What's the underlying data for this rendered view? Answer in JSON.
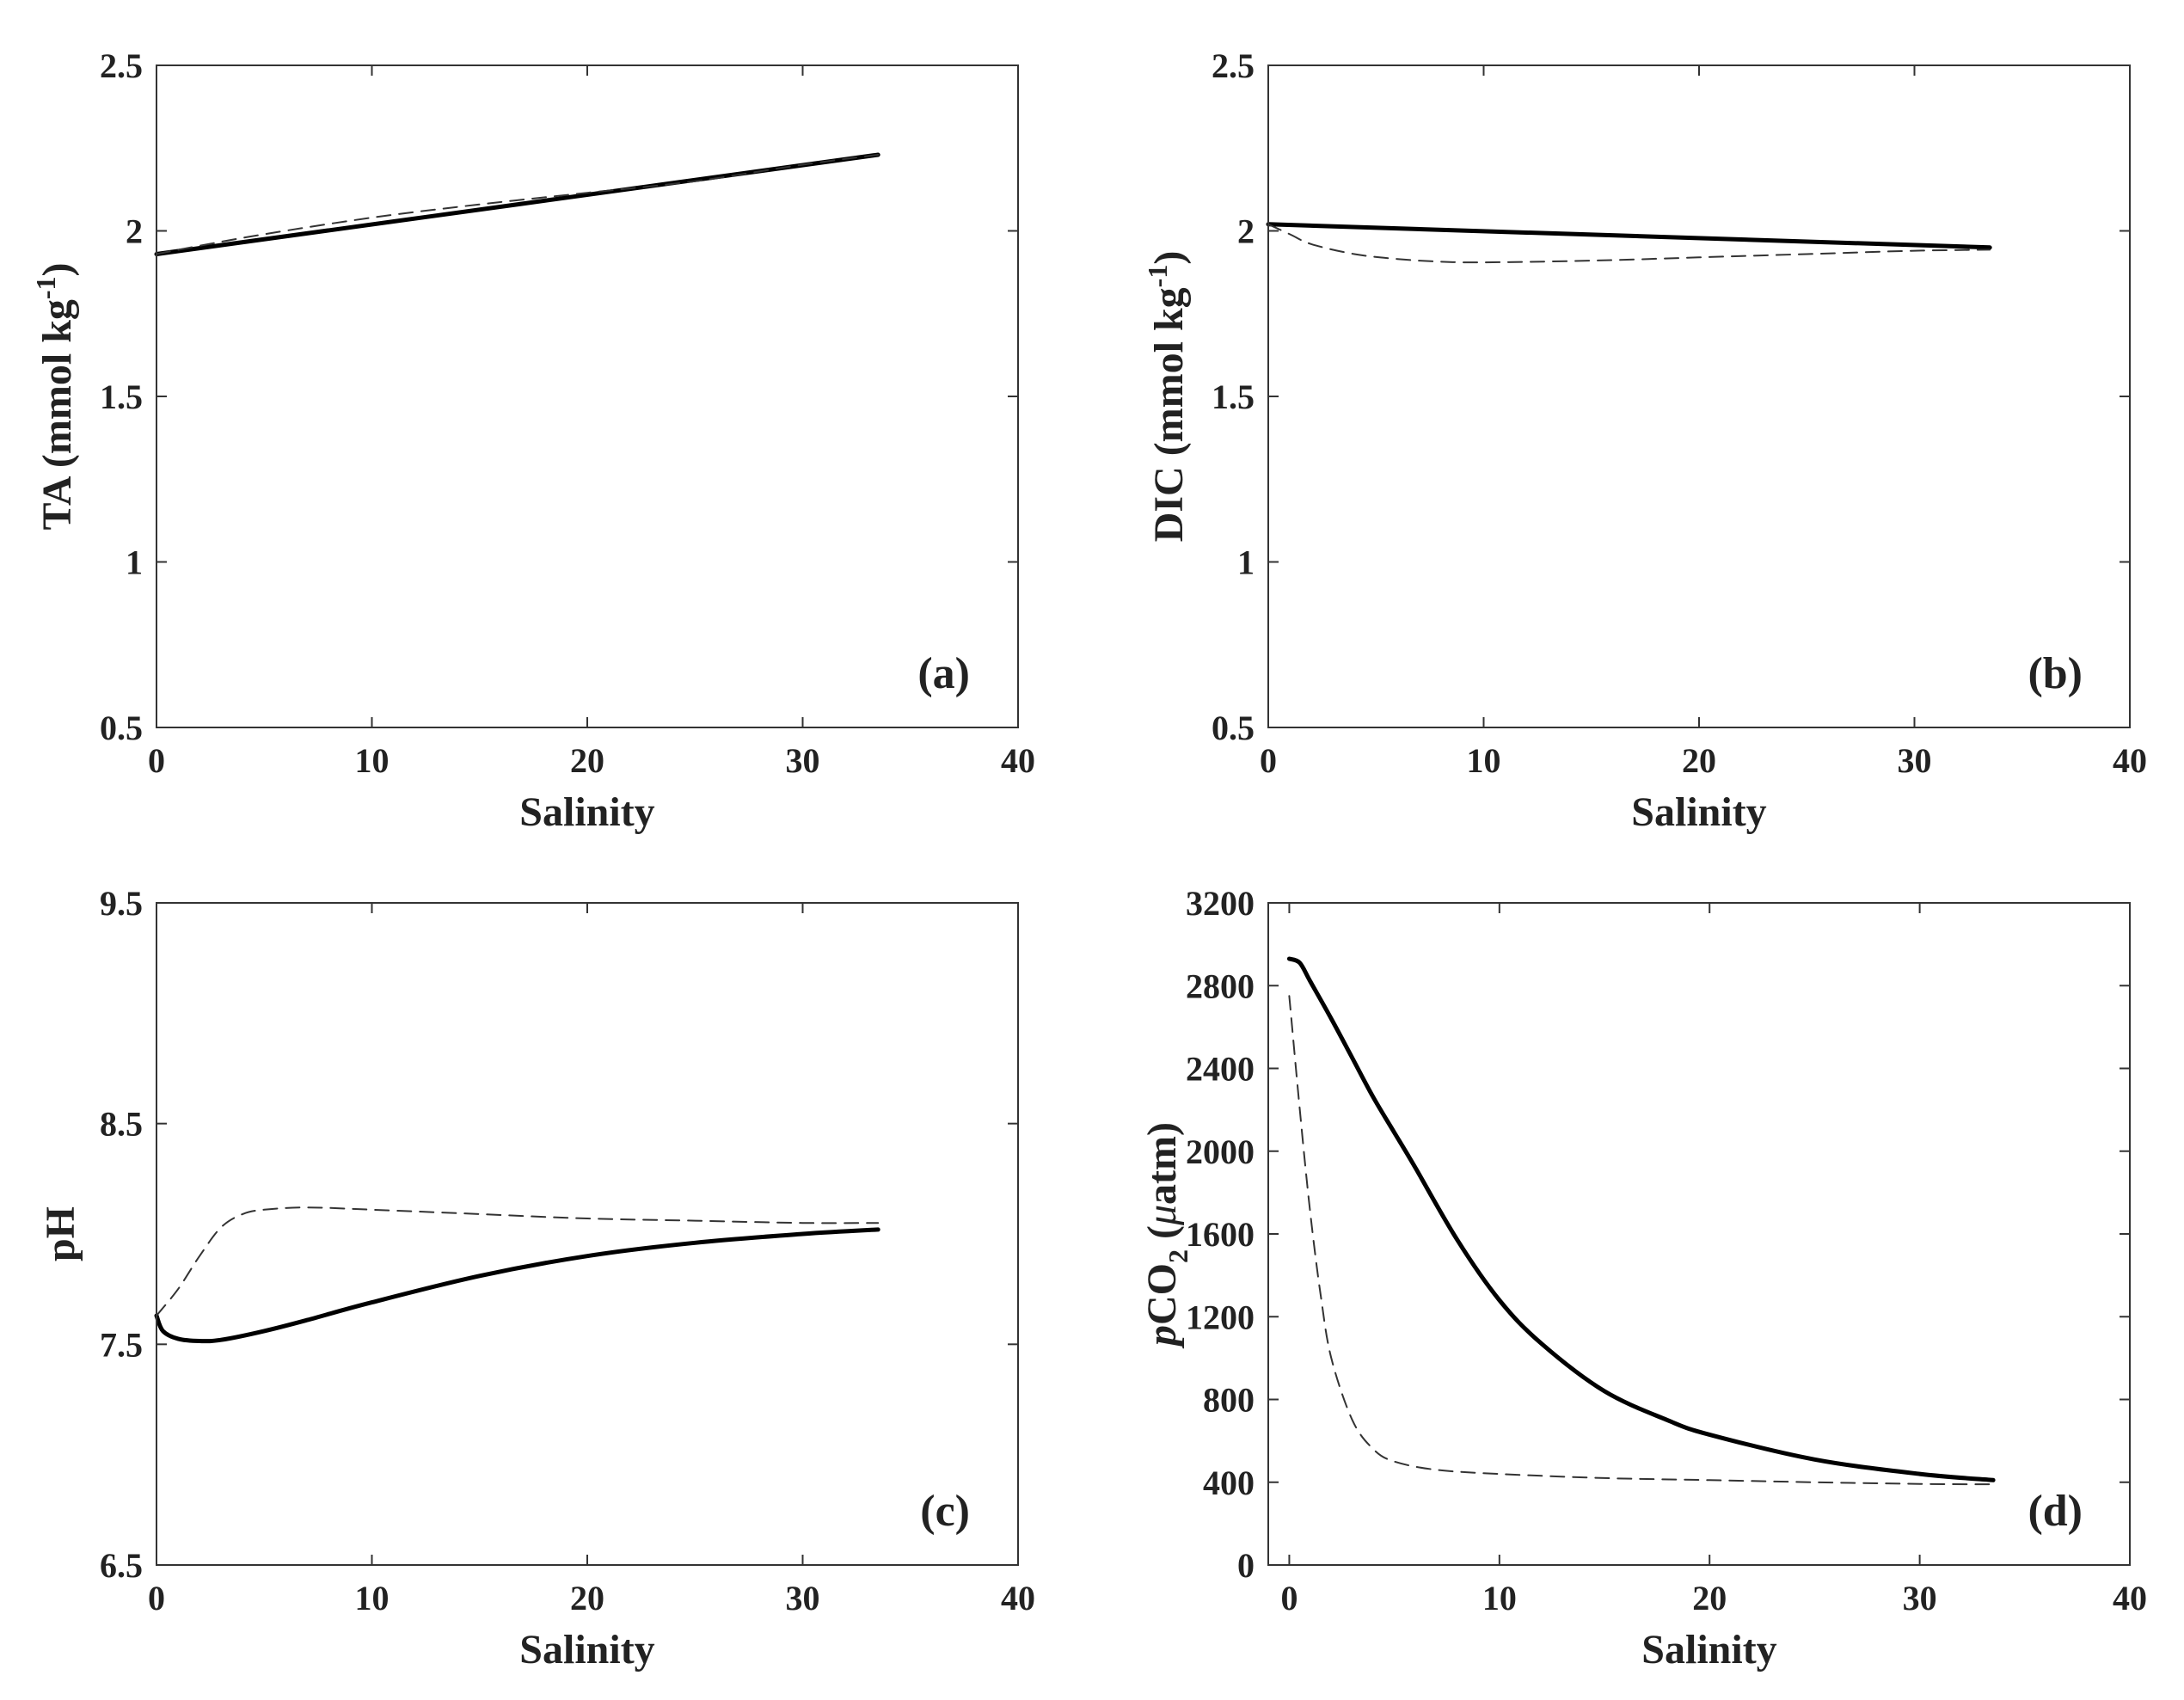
{
  "figure": {
    "colors": {
      "axis": "#333333",
      "solid_line": "#000000",
      "dashed_line": "#333333",
      "background": "#ffffff"
    }
  },
  "chart_data": [
    {
      "id": "a",
      "type": "line",
      "panel_label": "(a)",
      "xlabel": "Salinity",
      "ylabel": {
        "main": "TA (mmol kg",
        "sup": "-1",
        "tail": ")"
      },
      "xlim": [
        0,
        40
      ],
      "ylim": [
        0.5,
        2.5
      ],
      "xticks": [
        0,
        10,
        20,
        30,
        40
      ],
      "xtick_labels": [
        "0",
        "10",
        "20",
        "30",
        "40"
      ],
      "yticks": [
        0.5,
        1,
        1.5,
        2,
        2.5
      ],
      "ytick_labels": [
        "0.5",
        "1",
        "1.5",
        "2",
        "2.5"
      ],
      "series": [
        {
          "name": "solid",
          "style": "solid",
          "x": [
            0,
            33.5
          ],
          "y": [
            1.93,
            2.23
          ]
        },
        {
          "name": "dashed",
          "style": "dashed",
          "x": [
            0,
            2,
            5,
            10,
            15,
            20,
            25,
            30,
            33.5
          ],
          "y": [
            1.93,
            1.955,
            1.99,
            2.04,
            2.08,
            2.115,
            2.15,
            2.2,
            2.23
          ]
        }
      ]
    },
    {
      "id": "b",
      "type": "line",
      "panel_label": "(b)",
      "xlabel": "Salinity",
      "ylabel": {
        "main": "DIC (mmol kg",
        "sup": "-1",
        "tail": ")"
      },
      "xlim": [
        0,
        40
      ],
      "ylim": [
        0.5,
        2.5
      ],
      "xticks": [
        0,
        10,
        20,
        30,
        40
      ],
      "xtick_labels": [
        "0",
        "10",
        "20",
        "30",
        "40"
      ],
      "yticks": [
        0.5,
        1,
        1.5,
        2,
        2.5
      ],
      "ytick_labels": [
        "0.5",
        "1",
        "1.5",
        "2",
        "2.5"
      ],
      "series": [
        {
          "name": "solid",
          "style": "solid",
          "x": [
            0,
            33.5
          ],
          "y": [
            2.02,
            1.95
          ]
        },
        {
          "name": "dashed",
          "style": "dashed",
          "x": [
            0,
            1,
            2,
            4,
            6,
            8,
            10,
            15,
            20,
            25,
            30,
            33.5
          ],
          "y": [
            2.02,
            1.99,
            1.96,
            1.93,
            1.915,
            1.907,
            1.905,
            1.91,
            1.92,
            1.93,
            1.94,
            1.943
          ]
        }
      ]
    },
    {
      "id": "c",
      "type": "line",
      "panel_label": "(c)",
      "xlabel": "Salinity",
      "ylabel": {
        "main": "pH",
        "sup": "",
        "tail": ""
      },
      "xlim": [
        0,
        40
      ],
      "ylim": [
        6.5,
        9.5
      ],
      "xticks": [
        0,
        10,
        20,
        30,
        40
      ],
      "xtick_labels": [
        "0",
        "10",
        "20",
        "30",
        "40"
      ],
      "yticks": [
        6.5,
        7.5,
        8.5,
        9.5
      ],
      "ytick_labels": [
        "6.5",
        "7.5",
        "8.5",
        "9.5"
      ],
      "series": [
        {
          "name": "solid",
          "style": "solid",
          "x": [
            0,
            0.3,
            1,
            2,
            3,
            5,
            7,
            10,
            15,
            20,
            25,
            30,
            33.5
          ],
          "y": [
            7.63,
            7.56,
            7.525,
            7.515,
            7.52,
            7.56,
            7.61,
            7.69,
            7.81,
            7.9,
            7.96,
            8.0,
            8.02
          ]
        },
        {
          "name": "dashed",
          "style": "dashed",
          "x": [
            0,
            1,
            2,
            3,
            4,
            5,
            7,
            10,
            15,
            20,
            25,
            30,
            33.5
          ],
          "y": [
            7.63,
            7.75,
            7.9,
            8.03,
            8.09,
            8.11,
            8.12,
            8.11,
            8.09,
            8.07,
            8.06,
            8.05,
            8.05
          ]
        }
      ]
    },
    {
      "id": "d",
      "type": "line",
      "panel_label": "(d)",
      "xlabel": "Salinity",
      "ylabel": {
        "prefix_italic": "p",
        "main": "CO",
        "sub": "2",
        "tail": " (",
        "mu": "μ",
        "unit": "atm)"
      },
      "xlim": [
        -1,
        40
      ],
      "ylim": [
        0,
        3200
      ],
      "xticks": [
        0,
        10,
        20,
        30,
        40
      ],
      "xtick_labels": [
        "0",
        "10",
        "20",
        "30",
        "40"
      ],
      "yticks": [
        0,
        400,
        800,
        1200,
        1600,
        2000,
        2400,
        2800,
        3200
      ],
      "ytick_labels": [
        "0",
        "400",
        "800",
        "1200",
        "1600",
        "2000",
        "2400",
        "2800",
        "3200"
      ],
      "series": [
        {
          "name": "solid",
          "style": "solid",
          "x": [
            0,
            0.5,
            1,
            2,
            3,
            4,
            5,
            6,
            8,
            10,
            12,
            15,
            18,
            20,
            25,
            30,
            33.5
          ],
          "y": [
            2930,
            2910,
            2820,
            2640,
            2450,
            2260,
            2090,
            1920,
            1570,
            1280,
            1070,
            840,
            700,
            630,
            510,
            440,
            410
          ]
        },
        {
          "name": "dashed",
          "style": "dashed",
          "x": [
            0,
            0.5,
            1,
            1.5,
            2,
            3,
            4,
            5,
            7,
            10,
            15,
            20,
            25,
            30,
            33.5
          ],
          "y": [
            2750,
            2200,
            1700,
            1300,
            1000,
            700,
            560,
            500,
            460,
            440,
            420,
            410,
            400,
            392,
            390
          ]
        }
      ]
    }
  ]
}
